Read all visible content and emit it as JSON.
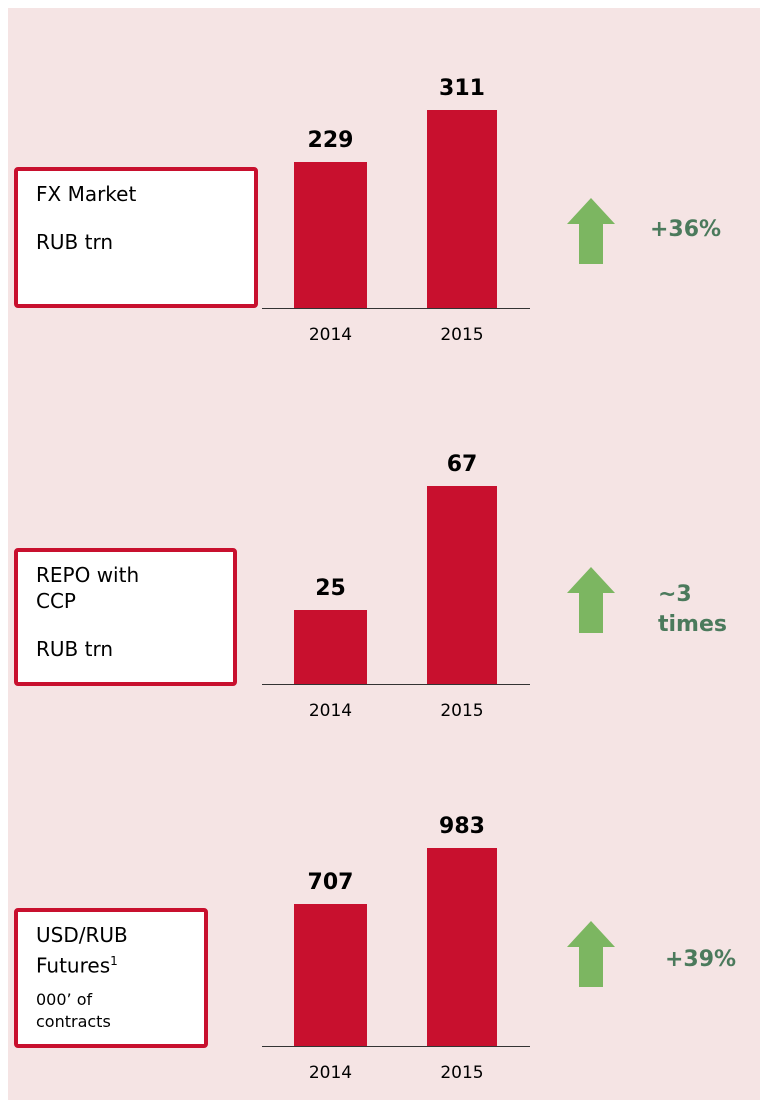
{
  "chart_data": [
    {
      "type": "bar",
      "title": "FX Market",
      "unit": "RUB trn",
      "categories": [
        "2014",
        "2015"
      ],
      "values": [
        229,
        311
      ],
      "color": "#c8102e",
      "annotation": "+36%"
    },
    {
      "type": "bar",
      "title": "REPO with CCP",
      "unit": "RUB trn",
      "categories": [
        "2014",
        "2015"
      ],
      "values": [
        25,
        67
      ],
      "color": "#c8102e",
      "annotation": "~3 times"
    },
    {
      "type": "bar",
      "title": "USD/RUB Futures",
      "footnote_marker": "1",
      "unit": "000’ of contracts",
      "categories": [
        "2014",
        "2015"
      ],
      "values": [
        707,
        983
      ],
      "color": "#c8102e",
      "annotation": "+39%"
    }
  ]
}
